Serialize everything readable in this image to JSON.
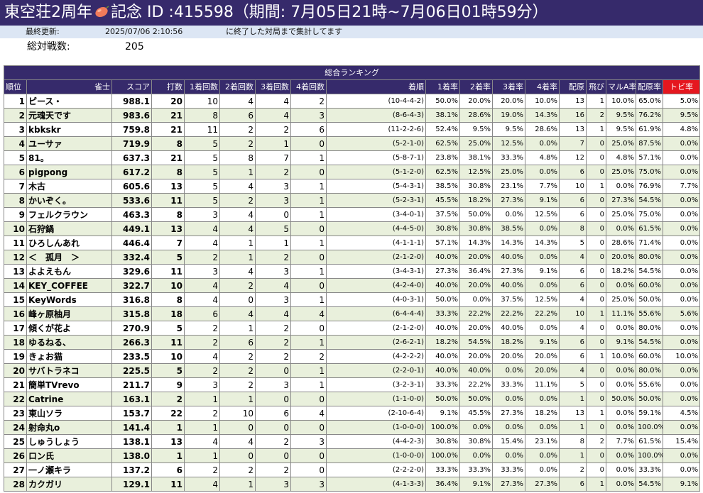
{
  "title": {
    "before": "東空荘2周年",
    "after": "記念 ID :415598（期間: 7月05日21時~7月06日01時59分）"
  },
  "info": {
    "last_updated_label": "最終更新:",
    "last_updated_value": "2025/07/06 2:10:56",
    "note": "に終了した対局まで集計してます"
  },
  "battles": {
    "label": "総対戦数:",
    "value": "205"
  },
  "table_title": "総合ランキング",
  "headers": [
    "順位",
    "雀士",
    "スコア",
    "打数",
    "1着回数",
    "2着回数",
    "3着回数",
    "4着回数",
    "着順",
    "1着率",
    "2着率",
    "3着率",
    "4着率",
    "配原",
    "飛び",
    "マルA率",
    "配原率",
    "トビ率"
  ],
  "rows": [
    [
      "1",
      "ピース・",
      "988.1",
      "20",
      "10",
      "4",
      "4",
      "2",
      "(10-4-4-2)",
      "50.0%",
      "20.0%",
      "20.0%",
      "10.0%",
      "13",
      "1",
      "10.0%",
      "65.0%",
      "5.0%"
    ],
    [
      "2",
      "元魂天です",
      "983.6",
      "21",
      "8",
      "6",
      "4",
      "3",
      "(8-6-4-3)",
      "38.1%",
      "28.6%",
      "19.0%",
      "14.3%",
      "16",
      "2",
      "9.5%",
      "76.2%",
      "9.5%"
    ],
    [
      "3",
      "kbkskr",
      "759.8",
      "21",
      "11",
      "2",
      "2",
      "6",
      "(11-2-2-6)",
      "52.4%",
      "9.5%",
      "9.5%",
      "28.6%",
      "13",
      "1",
      "9.5%",
      "61.9%",
      "4.8%"
    ],
    [
      "4",
      "ユーサァ",
      "719.9",
      "8",
      "5",
      "2",
      "1",
      "0",
      "(5-2-1-0)",
      "62.5%",
      "25.0%",
      "12.5%",
      "0.0%",
      "7",
      "0",
      "25.0%",
      "87.5%",
      "0.0%"
    ],
    [
      "5",
      "81。",
      "637.3",
      "21",
      "5",
      "8",
      "7",
      "1",
      "(5-8-7-1)",
      "23.8%",
      "38.1%",
      "33.3%",
      "4.8%",
      "12",
      "0",
      "4.8%",
      "57.1%",
      "0.0%"
    ],
    [
      "6",
      "pigpong",
      "617.2",
      "8",
      "5",
      "1",
      "2",
      "0",
      "(5-1-2-0)",
      "62.5%",
      "12.5%",
      "25.0%",
      "0.0%",
      "6",
      "0",
      "25.0%",
      "75.0%",
      "0.0%"
    ],
    [
      "7",
      "木古",
      "605.6",
      "13",
      "5",
      "4",
      "3",
      "1",
      "(5-4-3-1)",
      "38.5%",
      "30.8%",
      "23.1%",
      "7.7%",
      "10",
      "1",
      "0.0%",
      "76.9%",
      "7.7%"
    ],
    [
      "8",
      "かいぞく。",
      "533.6",
      "11",
      "5",
      "2",
      "3",
      "1",
      "(5-2-3-1)",
      "45.5%",
      "18.2%",
      "27.3%",
      "9.1%",
      "6",
      "0",
      "27.3%",
      "54.5%",
      "0.0%"
    ],
    [
      "9",
      "フェルクラウン",
      "463.3",
      "8",
      "3",
      "4",
      "0",
      "1",
      "(3-4-0-1)",
      "37.5%",
      "50.0%",
      "0.0%",
      "12.5%",
      "6",
      "0",
      "25.0%",
      "75.0%",
      "0.0%"
    ],
    [
      "10",
      "石狩鍋",
      "449.1",
      "13",
      "4",
      "4",
      "5",
      "0",
      "(4-4-5-0)",
      "30.8%",
      "30.8%",
      "38.5%",
      "0.0%",
      "8",
      "0",
      "0.0%",
      "61.5%",
      "0.0%"
    ],
    [
      "11",
      "ひろしんあれ",
      "446.4",
      "7",
      "4",
      "1",
      "1",
      "1",
      "(4-1-1-1)",
      "57.1%",
      "14.3%",
      "14.3%",
      "14.3%",
      "5",
      "0",
      "28.6%",
      "71.4%",
      "0.0%"
    ],
    [
      "12",
      "＜　孤月　＞",
      "332.4",
      "5",
      "2",
      "1",
      "2",
      "0",
      "(2-1-2-0)",
      "40.0%",
      "20.0%",
      "40.0%",
      "0.0%",
      "4",
      "0",
      "20.0%",
      "80.0%",
      "0.0%"
    ],
    [
      "13",
      "よよえもん",
      "329.6",
      "11",
      "3",
      "4",
      "3",
      "1",
      "(3-4-3-1)",
      "27.3%",
      "36.4%",
      "27.3%",
      "9.1%",
      "6",
      "0",
      "18.2%",
      "54.5%",
      "0.0%"
    ],
    [
      "14",
      "KEY_COFFEE",
      "322.7",
      "10",
      "4",
      "2",
      "4",
      "0",
      "(4-2-4-0)",
      "40.0%",
      "20.0%",
      "40.0%",
      "0.0%",
      "6",
      "0",
      "0.0%",
      "60.0%",
      "0.0%"
    ],
    [
      "15",
      "KeyWords",
      "316.8",
      "8",
      "4",
      "0",
      "3",
      "1",
      "(4-0-3-1)",
      "50.0%",
      "0.0%",
      "37.5%",
      "12.5%",
      "4",
      "0",
      "25.0%",
      "50.0%",
      "0.0%"
    ],
    [
      "16",
      "峰ヶ原柚月",
      "315.8",
      "18",
      "6",
      "4",
      "4",
      "4",
      "(6-4-4-4)",
      "33.3%",
      "22.2%",
      "22.2%",
      "22.2%",
      "10",
      "1",
      "11.1%",
      "55.6%",
      "5.6%"
    ],
    [
      "17",
      "傾くが花よ",
      "270.9",
      "5",
      "2",
      "1",
      "2",
      "0",
      "(2-1-2-0)",
      "40.0%",
      "20.0%",
      "40.0%",
      "0.0%",
      "4",
      "0",
      "0.0%",
      "80.0%",
      "0.0%"
    ],
    [
      "18",
      "ゆるねる、",
      "266.3",
      "11",
      "2",
      "6",
      "2",
      "1",
      "(2-6-2-1)",
      "18.2%",
      "54.5%",
      "18.2%",
      "9.1%",
      "6",
      "0",
      "9.1%",
      "54.5%",
      "0.0%"
    ],
    [
      "19",
      "きょお猫",
      "233.5",
      "10",
      "4",
      "2",
      "2",
      "2",
      "(4-2-2-2)",
      "40.0%",
      "20.0%",
      "20.0%",
      "20.0%",
      "6",
      "1",
      "10.0%",
      "60.0%",
      "10.0%"
    ],
    [
      "20",
      "サバトラネコ",
      "225.5",
      "5",
      "2",
      "2",
      "0",
      "1",
      "(2-2-0-1)",
      "40.0%",
      "40.0%",
      "0.0%",
      "20.0%",
      "4",
      "0",
      "0.0%",
      "80.0%",
      "0.0%"
    ],
    [
      "21",
      "簡単TVrevo",
      "211.7",
      "9",
      "3",
      "2",
      "3",
      "1",
      "(3-2-3-1)",
      "33.3%",
      "22.2%",
      "33.3%",
      "11.1%",
      "5",
      "0",
      "0.0%",
      "55.6%",
      "0.0%"
    ],
    [
      "22",
      "Catrine",
      "163.1",
      "2",
      "1",
      "1",
      "0",
      "0",
      "(1-1-0-0)",
      "50.0%",
      "50.0%",
      "0.0%",
      "0.0%",
      "1",
      "0",
      "50.0%",
      "50.0%",
      "0.0%"
    ],
    [
      "23",
      "東山ソラ",
      "153.7",
      "22",
      "2",
      "10",
      "6",
      "4",
      "(2-10-6-4)",
      "9.1%",
      "45.5%",
      "27.3%",
      "18.2%",
      "13",
      "1",
      "0.0%",
      "59.1%",
      "4.5%"
    ],
    [
      "24",
      "射命丸o",
      "141.4",
      "1",
      "1",
      "0",
      "0",
      "0",
      "(1-0-0-0)",
      "100.0%",
      "0.0%",
      "0.0%",
      "0.0%",
      "1",
      "0",
      "0.0%",
      "100.0%",
      "0.0%"
    ],
    [
      "25",
      "しゅうしょう",
      "138.1",
      "13",
      "4",
      "4",
      "2",
      "3",
      "(4-4-2-3)",
      "30.8%",
      "30.8%",
      "15.4%",
      "23.1%",
      "8",
      "2",
      "7.7%",
      "61.5%",
      "15.4%"
    ],
    [
      "26",
      "ロン氏",
      "138.0",
      "1",
      "1",
      "0",
      "0",
      "0",
      "(1-0-0-0)",
      "100.0%",
      "0.0%",
      "0.0%",
      "0.0%",
      "1",
      "0",
      "0.0%",
      "100.0%",
      "0.0%"
    ],
    [
      "27",
      "一ノ瀬キラ",
      "137.2",
      "6",
      "2",
      "2",
      "2",
      "0",
      "(2-2-2-0)",
      "33.3%",
      "33.3%",
      "33.3%",
      "0.0%",
      "2",
      "0",
      "0.0%",
      "33.3%",
      "0.0%"
    ],
    [
      "28",
      "カクガリ",
      "129.1",
      "11",
      "4",
      "1",
      "3",
      "3",
      "(4-1-3-3)",
      "36.4%",
      "9.1%",
      "27.3%",
      "27.3%",
      "6",
      "1",
      "0.0%",
      "54.5%",
      "9.1%"
    ]
  ],
  "colors": {
    "header_bg": "#362a6b",
    "info_bg": "#dce6f4",
    "row_alt": "#e9f0dc",
    "tobi_header": "#e5171f"
  },
  "icons": {
    "title_emblem": "sweet-potato-icon"
  }
}
